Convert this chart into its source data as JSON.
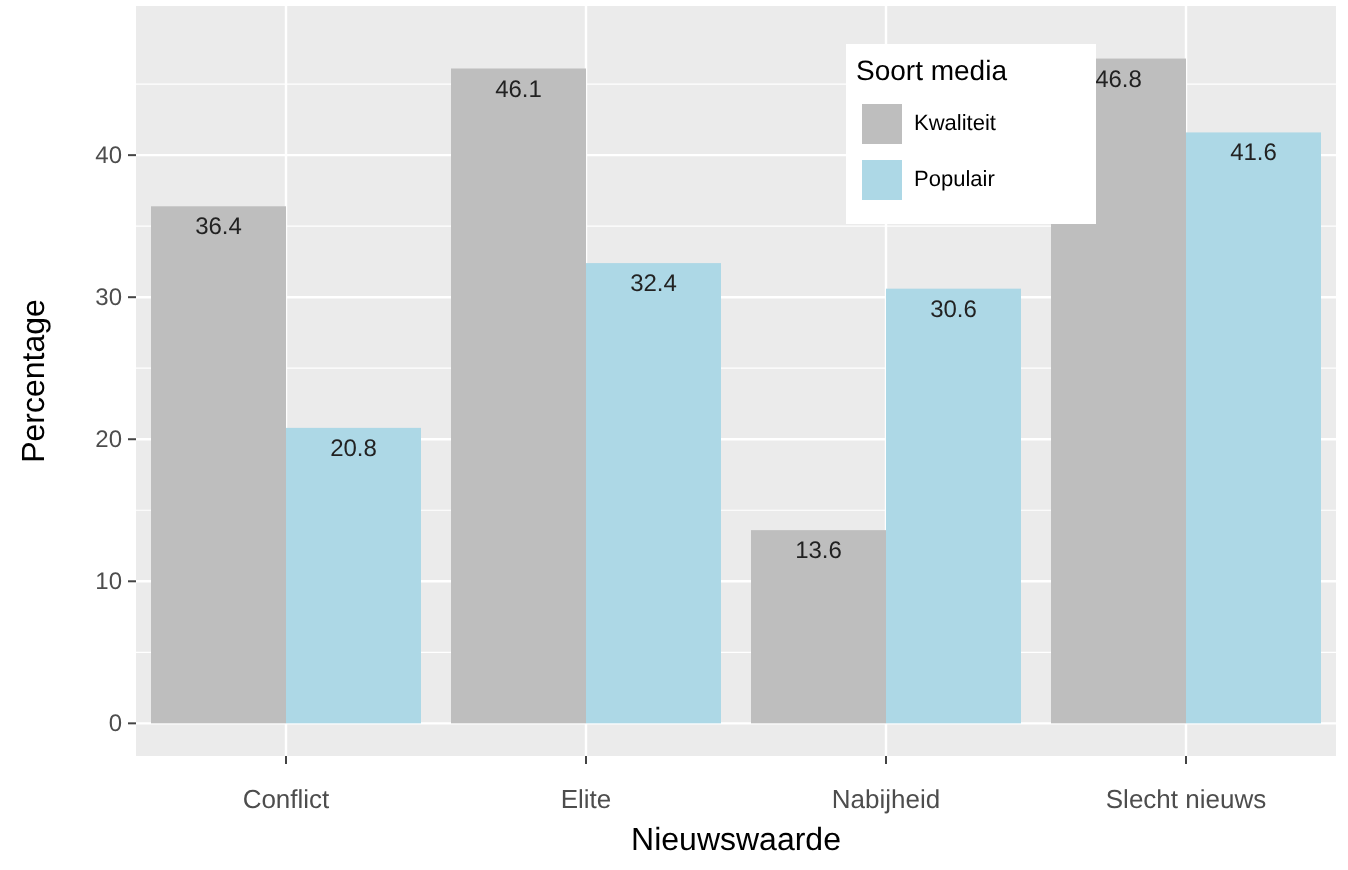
{
  "chart_data": {
    "type": "bar",
    "xlabel": "Nieuwswaarde",
    "ylabel": "Percentage",
    "legend_title": "Soort media",
    "categories": [
      "Conflict",
      "Elite",
      "Nabijheid",
      "Slecht nieuws"
    ],
    "series": [
      {
        "name": "Kwaliteit",
        "color": "#bebebe",
        "values": [
          36.4,
          46.1,
          13.6,
          46.8
        ]
      },
      {
        "name": "Populair",
        "color": "#add8e6",
        "values": [
          20.8,
          32.4,
          30.6,
          41.6
        ]
      }
    ],
    "ylim": [
      -2.3,
      50.5
    ],
    "yticks": [
      0,
      10,
      20,
      30,
      40
    ],
    "grid": true,
    "legend": "top",
    "data_labels": true
  }
}
